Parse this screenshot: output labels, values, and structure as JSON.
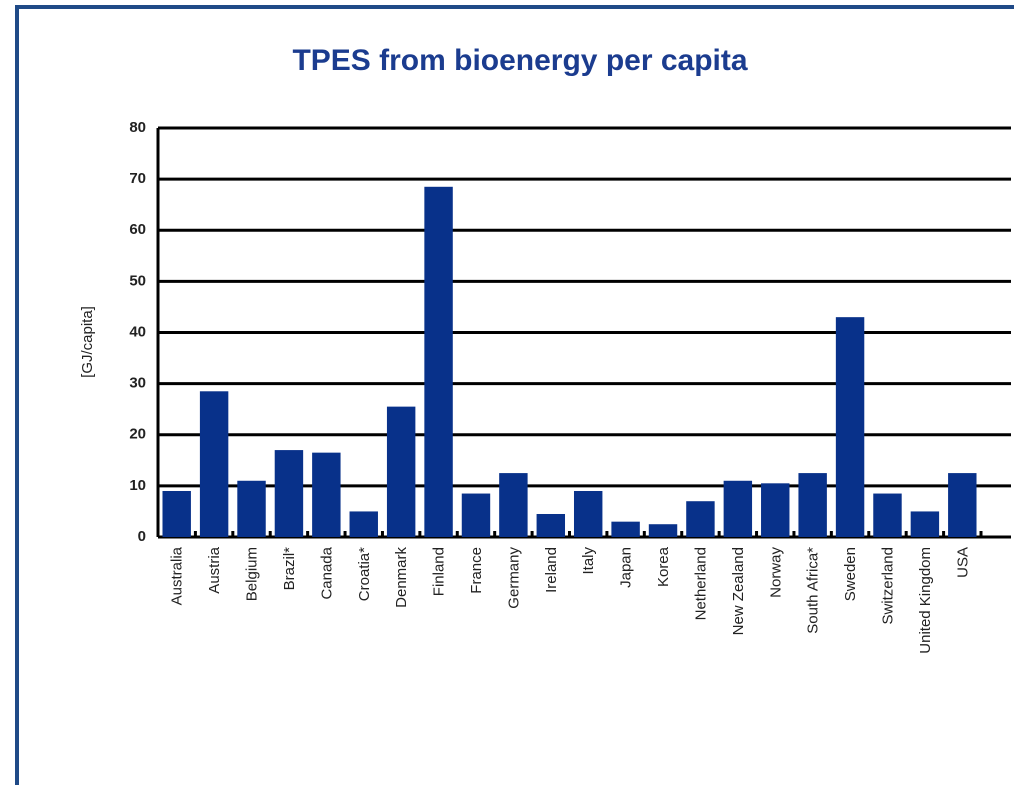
{
  "chart_data": {
    "type": "bar",
    "title": "TPES from bioenergy per capita",
    "y_label": "[GJ/capita]",
    "categories": [
      "Australia",
      "Austria",
      "Belgium",
      "Brazil*",
      "Canada",
      "Croatia*",
      "Denmark",
      "Finland",
      "France",
      "Germany",
      "Ireland",
      "Italy",
      "Japan",
      "Korea",
      "Netherland",
      "New Zealand",
      "Norway",
      "South Africa*",
      "Sweden",
      "Switzerland",
      "United Kingdom",
      "USA"
    ],
    "values": [
      9,
      28.5,
      11,
      17,
      16.5,
      5,
      25.5,
      68.5,
      8.5,
      12.5,
      4.5,
      9,
      3,
      2.5,
      7,
      11,
      10.5,
      12.5,
      43,
      8.5,
      5,
      12.5
    ],
    "color": "#08318a",
    "ylim": [
      0,
      80
    ],
    "yticks": [
      0,
      10,
      20,
      30,
      40,
      50,
      60,
      70,
      80
    ],
    "grid": true
  }
}
